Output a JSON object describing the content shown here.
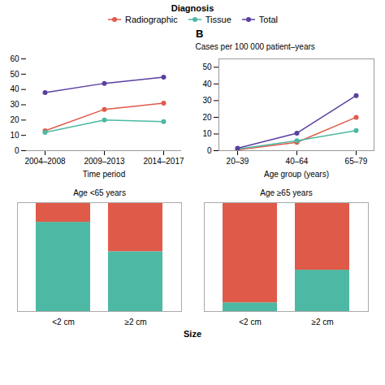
{
  "chart_data": [
    {
      "type": "line",
      "categories": [
        "2004–2008",
        "2009–2013",
        "2014–2017"
      ],
      "series": [
        {
          "name": "Radiographic",
          "color": "#E05A4A",
          "marker": "circle",
          "values": [
            13,
            27,
            31
          ]
        },
        {
          "name": "Tissue",
          "color": "#4DB8A4",
          "marker": "circle",
          "values": [
            12,
            20,
            19
          ]
        },
        {
          "name": "Total",
          "color": "#5B3FA0",
          "marker": "circle",
          "values": [
            38,
            44,
            48
          ]
        }
      ],
      "xlabel": "Time period",
      "ylim": [
        0,
        60
      ],
      "yticks": [
        0,
        10,
        20,
        30,
        40,
        50,
        60
      ],
      "legend": "top",
      "legend_title": "Diagnosis"
    },
    {
      "type": "line",
      "title": "B",
      "categories": [
        "20–39",
        "40–64",
        "65–79"
      ],
      "series": [
        {
          "name": "Radiographic",
          "color": "#E05A4A",
          "marker": "circle",
          "values": [
            0.5,
            5,
            20
          ]
        },
        {
          "name": "Tissue",
          "color": "#4DB8A4",
          "marker": "circle",
          "values": [
            1,
            6,
            12
          ]
        },
        {
          "name": "Total",
          "color": "#5B3FA0",
          "marker": "circle",
          "values": [
            1.5,
            10.5,
            33
          ]
        }
      ],
      "xlabel": "Age group (years)",
      "ylabel": "Cases per 100 000 patient–years",
      "ylim": [
        0,
        55
      ],
      "yticks": [
        0,
        10,
        20,
        30,
        40,
        50
      ]
    },
    {
      "type": "bar",
      "stacked": true,
      "categories": [
        "<2 cm",
        "≥2 cm",
        "<2 cm",
        "≥2 cm"
      ],
      "groups": [
        "Age <65 years",
        "Age ≥65 years"
      ],
      "series": [
        {
          "color": "#4DB8A4",
          "values": [
            0.82,
            0.55,
            0.08,
            0.38
          ]
        },
        {
          "color": "#E05A4A",
          "values": [
            0.18,
            0.45,
            0.92,
            0.62
          ]
        }
      ],
      "xlabel": "Size",
      "ylim": [
        0,
        1
      ],
      "tick_labels": "x"
    }
  ]
}
